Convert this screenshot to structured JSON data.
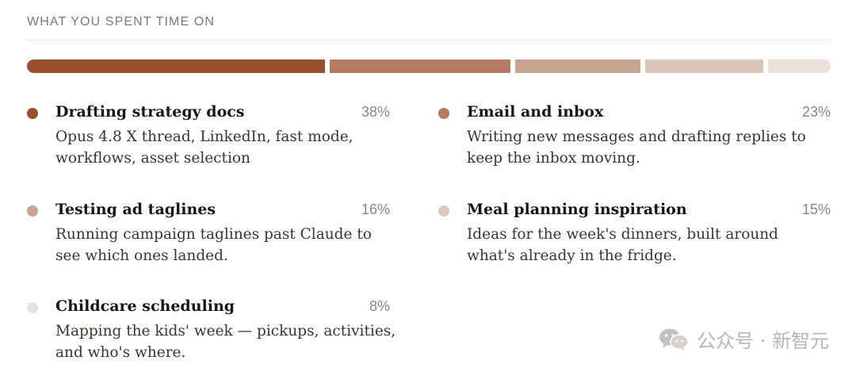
{
  "section": {
    "title": "WHAT YOU SPENT TIME ON"
  },
  "bar": {
    "segments": [
      {
        "label": "Drafting strategy docs",
        "value": 38,
        "color": "#9a4f2f"
      },
      {
        "label": "Email and inbox",
        "value": 23,
        "color": "#b67b61"
      },
      {
        "label": "Testing ad taglines",
        "value": 16,
        "color": "#c8a391"
      },
      {
        "label": "Meal planning inspiration",
        "value": 15,
        "color": "#dcc6bb"
      },
      {
        "label": "Childcare scheduling",
        "value": 8,
        "color": "#ece0da"
      }
    ]
  },
  "items": [
    {
      "title": "Drafting strategy docs",
      "percent": "38%",
      "description": "Opus 4.8 X thread, LinkedIn, fast mode, workflows, asset selection",
      "color": "#9a4f2f"
    },
    {
      "title": "Email and inbox",
      "percent": "23%",
      "description": "Writing new messages and drafting replies to keep the inbox moving.",
      "color": "#b67b61"
    },
    {
      "title": "Testing ad taglines",
      "percent": "16%",
      "description": "Running campaign taglines past Claude to see which ones landed.",
      "color": "#c8a391"
    },
    {
      "title": "Meal planning inspiration",
      "percent": "15%",
      "description": "Ideas for the week's dinners, built around what's already in the fridge.",
      "color": "#dcc6bb"
    },
    {
      "title": "Childcare scheduling",
      "percent": "8%",
      "description": "Mapping the kids' week — pickups, activities, and who's where.",
      "color": "#ece0da"
    }
  ],
  "watermark": {
    "icon": "wechat-icon",
    "text": "公众号 · 新智元"
  }
}
